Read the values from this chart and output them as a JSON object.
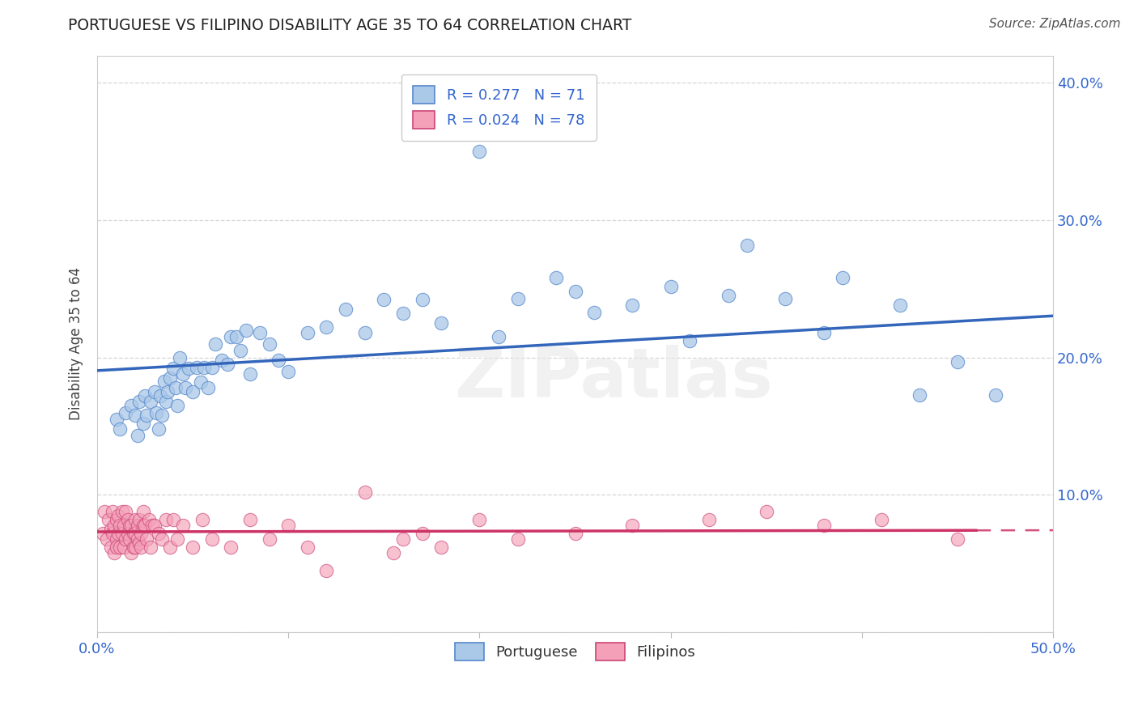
{
  "title": "PORTUGUESE VS FILIPINO DISABILITY AGE 35 TO 64 CORRELATION CHART",
  "source": "Source: ZipAtlas.com",
  "ylabel": "Disability Age 35 to 64",
  "xlim": [
    0.0,
    0.5
  ],
  "ylim": [
    0.0,
    0.42
  ],
  "background_color": "#ffffff",
  "portuguese_color": "#aac8e8",
  "portuguese_edge_color": "#5588cc",
  "portuguese_line_color": "#3366bb",
  "filipino_color": "#f4a0b8",
  "filipino_edge_color": "#cc4477",
  "filipino_line_color": "#cc3366",
  "grid_color": "#cccccc",
  "tick_label_color": "#3366cc",
  "title_color": "#222222",
  "source_color": "#555555",
  "watermark_text": "ZIPatlas",
  "legend_r_portuguese": "0.277",
  "legend_n_portuguese": "71",
  "legend_r_filipino": "0.024",
  "legend_n_filipino": "78",
  "portuguese_points_x": [
    0.01,
    0.012,
    0.015,
    0.018,
    0.02,
    0.021,
    0.022,
    0.024,
    0.025,
    0.026,
    0.028,
    0.03,
    0.031,
    0.032,
    0.033,
    0.034,
    0.035,
    0.036,
    0.037,
    0.038,
    0.04,
    0.041,
    0.042,
    0.043,
    0.045,
    0.046,
    0.048,
    0.05,
    0.052,
    0.054,
    0.056,
    0.058,
    0.06,
    0.062,
    0.065,
    0.068,
    0.07,
    0.073,
    0.075,
    0.078,
    0.08,
    0.085,
    0.09,
    0.095,
    0.1,
    0.11,
    0.12,
    0.13,
    0.14,
    0.15,
    0.16,
    0.17,
    0.18,
    0.2,
    0.21,
    0.22,
    0.24,
    0.25,
    0.26,
    0.28,
    0.3,
    0.31,
    0.33,
    0.34,
    0.36,
    0.38,
    0.39,
    0.42,
    0.43,
    0.45,
    0.47
  ],
  "portuguese_points_y": [
    0.155,
    0.148,
    0.16,
    0.165,
    0.158,
    0.143,
    0.168,
    0.152,
    0.172,
    0.158,
    0.168,
    0.175,
    0.16,
    0.148,
    0.172,
    0.158,
    0.183,
    0.168,
    0.175,
    0.185,
    0.192,
    0.178,
    0.165,
    0.2,
    0.188,
    0.178,
    0.192,
    0.175,
    0.193,
    0.182,
    0.193,
    0.178,
    0.193,
    0.21,
    0.198,
    0.195,
    0.215,
    0.215,
    0.205,
    0.22,
    0.188,
    0.218,
    0.21,
    0.198,
    0.19,
    0.218,
    0.222,
    0.235,
    0.218,
    0.242,
    0.232,
    0.242,
    0.225,
    0.35,
    0.215,
    0.243,
    0.258,
    0.248,
    0.233,
    0.238,
    0.252,
    0.212,
    0.245,
    0.282,
    0.243,
    0.218,
    0.258,
    0.238,
    0.173,
    0.197,
    0.173
  ],
  "filipino_points_x": [
    0.003,
    0.004,
    0.005,
    0.006,
    0.007,
    0.007,
    0.008,
    0.008,
    0.009,
    0.009,
    0.01,
    0.01,
    0.01,
    0.011,
    0.011,
    0.012,
    0.012,
    0.013,
    0.013,
    0.014,
    0.014,
    0.015,
    0.015,
    0.016,
    0.016,
    0.017,
    0.017,
    0.018,
    0.018,
    0.019,
    0.019,
    0.02,
    0.02,
    0.02,
    0.021,
    0.021,
    0.022,
    0.022,
    0.023,
    0.023,
    0.024,
    0.024,
    0.025,
    0.026,
    0.027,
    0.028,
    0.029,
    0.03,
    0.032,
    0.034,
    0.036,
    0.038,
    0.04,
    0.042,
    0.045,
    0.05,
    0.055,
    0.06,
    0.07,
    0.08,
    0.09,
    0.1,
    0.11,
    0.12,
    0.14,
    0.16,
    0.18,
    0.2,
    0.22,
    0.25,
    0.28,
    0.32,
    0.35,
    0.38,
    0.41,
    0.45,
    0.155,
    0.17
  ],
  "filipino_points_y": [
    0.072,
    0.088,
    0.068,
    0.082,
    0.075,
    0.062,
    0.072,
    0.088,
    0.058,
    0.078,
    0.068,
    0.082,
    0.062,
    0.072,
    0.085,
    0.078,
    0.062,
    0.072,
    0.088,
    0.078,
    0.062,
    0.088,
    0.068,
    0.072,
    0.082,
    0.078,
    0.068,
    0.058,
    0.078,
    0.072,
    0.062,
    0.072,
    0.062,
    0.082,
    0.068,
    0.078,
    0.065,
    0.082,
    0.072,
    0.062,
    0.078,
    0.088,
    0.078,
    0.068,
    0.082,
    0.062,
    0.078,
    0.078,
    0.072,
    0.068,
    0.082,
    0.062,
    0.082,
    0.068,
    0.078,
    0.062,
    0.082,
    0.068,
    0.062,
    0.082,
    0.068,
    0.078,
    0.062,
    0.045,
    0.102,
    0.068,
    0.062,
    0.082,
    0.068,
    0.072,
    0.078,
    0.082,
    0.088,
    0.078,
    0.082,
    0.068,
    0.058,
    0.072
  ]
}
